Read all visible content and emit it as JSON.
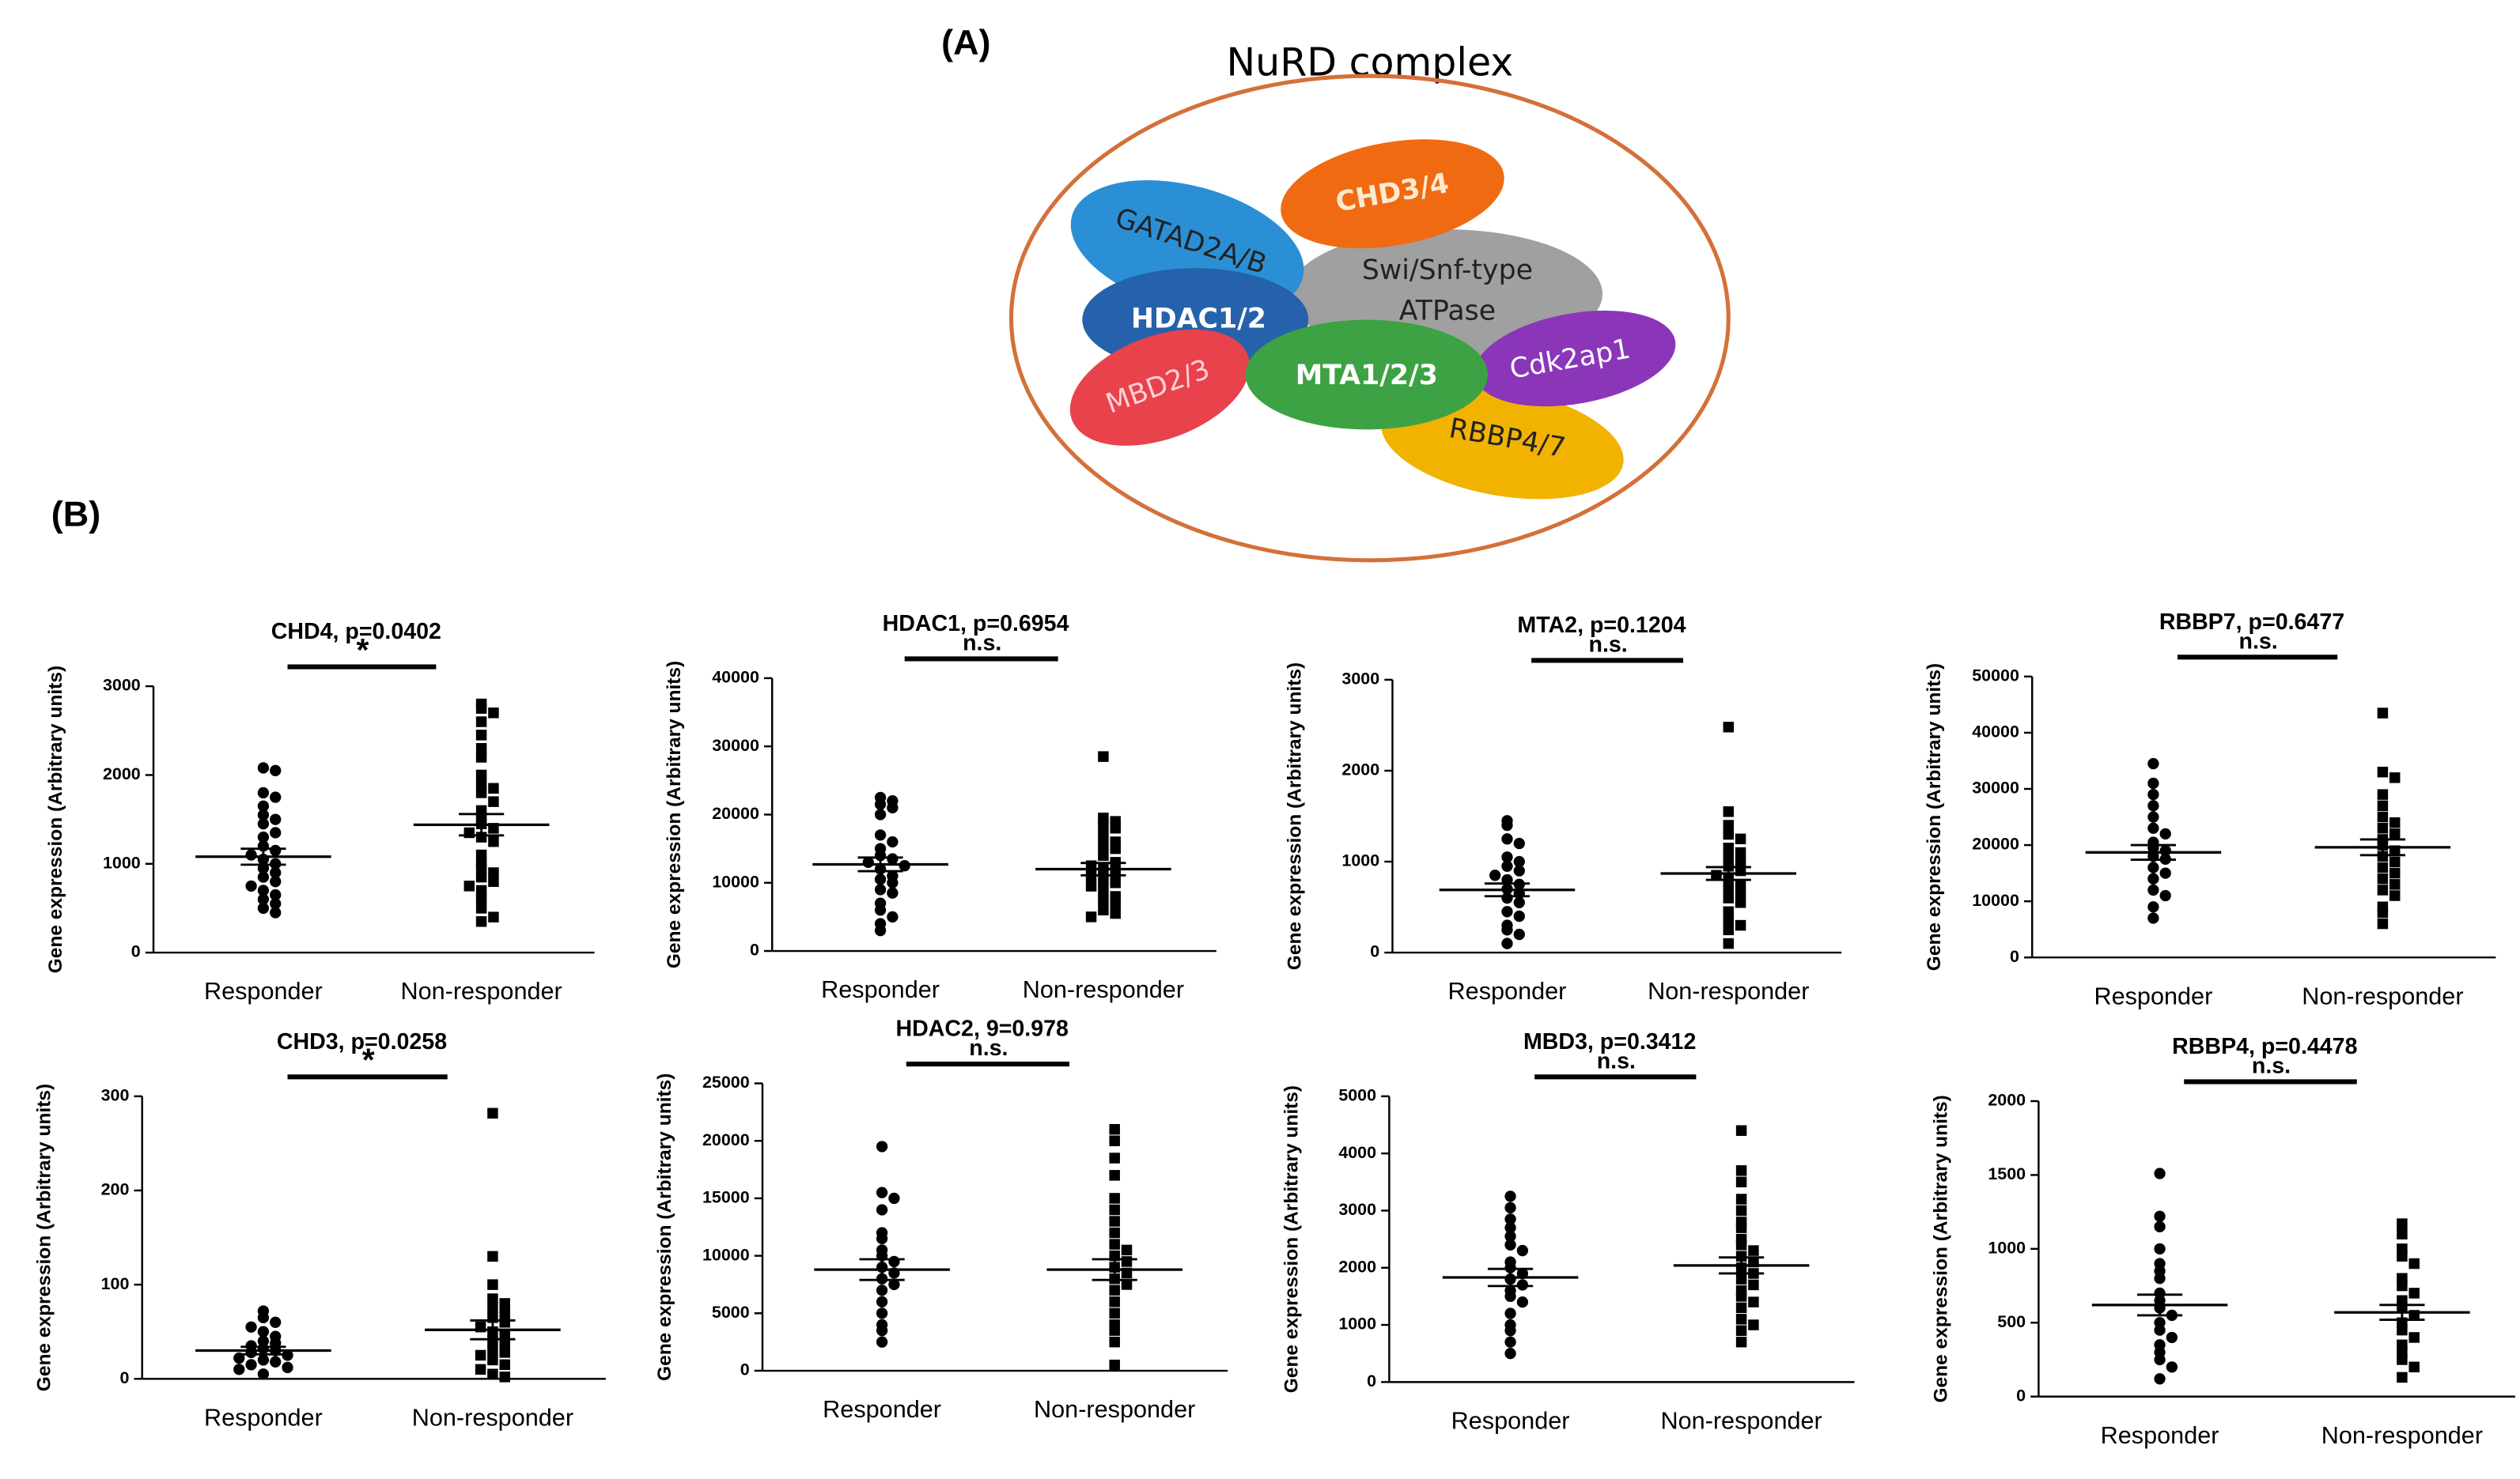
{
  "diagram": {
    "panel_a": "(A)",
    "title": "NuRD complex",
    "panel_b": "(B)",
    "subunits": [
      "RBBP4/7",
      "GATAD2A/B",
      "CHD3/4",
      "HDAC1/2",
      "Cdk2ap1",
      "MBD2/3",
      "MTA1/2/3"
    ],
    "atpase": [
      "Swi/Snf-type",
      "ATPase"
    ]
  },
  "chart_data": [
    {
      "type": "dot",
      "title": "CHD4, p=0.0402",
      "ylabel": "Gene expression (Arbitrary units)",
      "categories": [
        "Responder",
        "Non-responder"
      ],
      "ylim": [
        0,
        3000
      ],
      "yticks": [
        0,
        1000,
        2000,
        3000
      ],
      "significance": "*",
      "color": "#000000",
      "groups": [
        {
          "marker": "circle",
          "mean": 1080,
          "sem": 90,
          "values": [
            2080,
            2050,
            1800,
            1750,
            1650,
            1550,
            1500,
            1450,
            1350,
            1300,
            1200,
            1150,
            1100,
            1050,
            1000,
            950,
            900,
            850,
            800,
            750,
            700,
            650,
            600,
            550,
            500,
            450
          ]
        },
        {
          "marker": "square",
          "mean": 1440,
          "sem": 120,
          "values": [
            2800,
            2750,
            2700,
            2600,
            2450,
            2300,
            2200,
            2000,
            1900,
            1850,
            1800,
            1700,
            1600,
            1500,
            1450,
            1400,
            1350,
            1300,
            1250,
            1100,
            1000,
            950,
            900,
            850,
            800,
            750,
            700,
            600,
            500,
            400,
            350
          ]
        }
      ]
    },
    {
      "type": "dot",
      "title": "HDAC1, p=0.6954",
      "ylabel": "Gene expression (Arbitrary units)",
      "categories": [
        "Responder",
        "Non-responder"
      ],
      "ylim": [
        0,
        40000
      ],
      "yticks": [
        0,
        10000,
        20000,
        30000,
        40000
      ],
      "significance": "n.s.",
      "color": "#000000",
      "groups": [
        {
          "marker": "circle",
          "mean": 12700,
          "sem": 1000,
          "values": [
            22500,
            22000,
            21500,
            21000,
            20000,
            17000,
            16000,
            15000,
            14000,
            13500,
            13000,
            12500,
            12000,
            11000,
            10500,
            10000,
            9000,
            8500,
            7000,
            6000,
            5000,
            4000,
            3000
          ]
        },
        {
          "marker": "square",
          "mean": 12000,
          "sem": 900,
          "values": [
            28500,
            19500,
            19000,
            18500,
            18000,
            17000,
            16000,
            15500,
            15000,
            14000,
            13000,
            12500,
            12000,
            11500,
            11000,
            10500,
            10000,
            9500,
            9000,
            8000,
            7500,
            7000,
            6000,
            5500,
            5000
          ]
        }
      ]
    },
    {
      "type": "dot",
      "title": "MTA2, p=0.1204",
      "ylabel": "Gene expression (Arbitrary units)",
      "categories": [
        "Responder",
        "Non-responder"
      ],
      "ylim": [
        0,
        3000
      ],
      "yticks": [
        0,
        1000,
        2000,
        3000
      ],
      "significance": "n.s.",
      "color": "#000000",
      "groups": [
        {
          "marker": "circle",
          "mean": 690,
          "sem": 70,
          "values": [
            1450,
            1400,
            1250,
            1200,
            1050,
            1000,
            950,
            900,
            850,
            800,
            750,
            700,
            650,
            600,
            550,
            450,
            400,
            300,
            250,
            200,
            100
          ]
        },
        {
          "marker": "square",
          "mean": 870,
          "sem": 70,
          "values": [
            2480,
            1550,
            1400,
            1300,
            1250,
            1150,
            1100,
            1050,
            1000,
            950,
            900,
            850,
            800,
            750,
            700,
            650,
            600,
            550,
            450,
            350,
            300,
            250,
            100
          ]
        }
      ]
    },
    {
      "type": "dot",
      "title": "RBBP7, p=0.6477",
      "ylabel": "Gene expression (Arbitrary units)",
      "categories": [
        "Responder",
        "Non-responder"
      ],
      "ylim": [
        0,
        50000
      ],
      "yticks": [
        0,
        10000,
        20000,
        30000,
        40000,
        50000
      ],
      "significance": "n.s.",
      "color": "#000000",
      "groups": [
        {
          "marker": "circle",
          "mean": 18700,
          "sem": 1300,
          "values": [
            34500,
            31000,
            29000,
            27000,
            25000,
            23000,
            22000,
            20500,
            19500,
            19000,
            18000,
            17500,
            16000,
            15000,
            14000,
            12000,
            11000,
            9000,
            7000
          ]
        },
        {
          "marker": "square",
          "mean": 19600,
          "sem": 1400,
          "values": [
            43500,
            33000,
            32000,
            29000,
            27000,
            25000,
            24000,
            23000,
            22000,
            21000,
            20000,
            19000,
            18000,
            17000,
            16000,
            15000,
            14000,
            13000,
            12000,
            11000,
            9000,
            8000,
            6000
          ]
        }
      ]
    },
    {
      "type": "dot",
      "title": "CHD3, p=0.0258",
      "ylabel": "Gene expression (Arbitrary units)",
      "categories": [
        "Responder",
        "Non-responder"
      ],
      "ylim": [
        0,
        300
      ],
      "yticks": [
        0,
        100,
        200,
        300
      ],
      "significance": "*",
      "color": "#000000",
      "groups": [
        {
          "marker": "circle",
          "mean": 30,
          "sem": 4,
          "values": [
            72,
            65,
            60,
            55,
            50,
            45,
            40,
            38,
            35,
            32,
            30,
            28,
            25,
            22,
            20,
            18,
            15,
            12,
            10,
            5
          ]
        },
        {
          "marker": "square",
          "mean": 52,
          "sem": 10,
          "values": [
            282,
            130,
            100,
            85,
            80,
            75,
            70,
            65,
            60,
            55,
            50,
            45,
            40,
            35,
            30,
            28,
            25,
            20,
            15,
            10,
            5,
            2
          ]
        }
      ]
    },
    {
      "type": "dot",
      "title": "HDAC2, 9=0.978",
      "ylabel": "Gene expression (Arbitrary units)",
      "categories": [
        "Responder",
        "Non-responder"
      ],
      "ylim": [
        0,
        25000
      ],
      "yticks": [
        0,
        5000,
        10000,
        15000,
        20000,
        25000
      ],
      "significance": "n.s.",
      "color": "#000000",
      "groups": [
        {
          "marker": "circle",
          "mean": 8800,
          "sem": 900,
          "values": [
            19500,
            15500,
            15000,
            14000,
            12000,
            11500,
            10500,
            10000,
            9500,
            9000,
            8500,
            8000,
            7500,
            7000,
            6000,
            5000,
            4000,
            3500,
            2500
          ]
        },
        {
          "marker": "square",
          "mean": 8800,
          "sem": 900,
          "values": [
            21000,
            20000,
            18500,
            17000,
            15000,
            14000,
            13000,
            12000,
            11000,
            10500,
            10000,
            9500,
            9000,
            8500,
            8000,
            7500,
            7000,
            6000,
            5000,
            4000,
            3500,
            2500,
            500
          ]
        }
      ]
    },
    {
      "type": "dot",
      "title": "MBD3, p=0.3412",
      "ylabel": "Gene expression (Arbitrary units)",
      "categories": [
        "Responder",
        "Non-responder"
      ],
      "ylim": [
        0,
        5000
      ],
      "yticks": [
        0,
        1000,
        2000,
        3000,
        4000,
        5000
      ],
      "significance": "n.s.",
      "color": "#000000",
      "groups": [
        {
          "marker": "circle",
          "mean": 1830,
          "sem": 150,
          "values": [
            3250,
            3050,
            2850,
            2700,
            2550,
            2400,
            2300,
            2100,
            2000,
            1900,
            1800,
            1700,
            1600,
            1500,
            1400,
            1200,
            1000,
            900,
            700,
            500
          ]
        },
        {
          "marker": "square",
          "mean": 2040,
          "sem": 140,
          "values": [
            4400,
            3700,
            3500,
            3200,
            3000,
            2800,
            2700,
            2500,
            2400,
            2300,
            2200,
            2100,
            2000,
            1900,
            1800,
            1700,
            1600,
            1500,
            1400,
            1300,
            1100,
            1000,
            900,
            700
          ]
        }
      ]
    },
    {
      "type": "dot",
      "title": "RBBP4, p=0.4478",
      "ylabel": "Gene expression (Arbitrary units)",
      "categories": [
        "Responder",
        "Non-responder"
      ],
      "ylim": [
        0,
        2000
      ],
      "yticks": [
        0,
        500,
        1000,
        1500,
        2000
      ],
      "significance": "n.s.",
      "color": "#000000",
      "groups": [
        {
          "marker": "circle",
          "mean": 620,
          "sem": 70,
          "values": [
            1510,
            1220,
            1150,
            1000,
            900,
            850,
            800,
            700,
            650,
            600,
            550,
            500,
            450,
            400,
            350,
            300,
            250,
            200,
            120
          ]
        },
        {
          "marker": "square",
          "mean": 570,
          "sem": 50,
          "values": [
            1170,
            1100,
            1000,
            950,
            900,
            800,
            750,
            700,
            650,
            600,
            550,
            500,
            450,
            400,
            350,
            300,
            250,
            200,
            130
          ]
        }
      ]
    }
  ]
}
